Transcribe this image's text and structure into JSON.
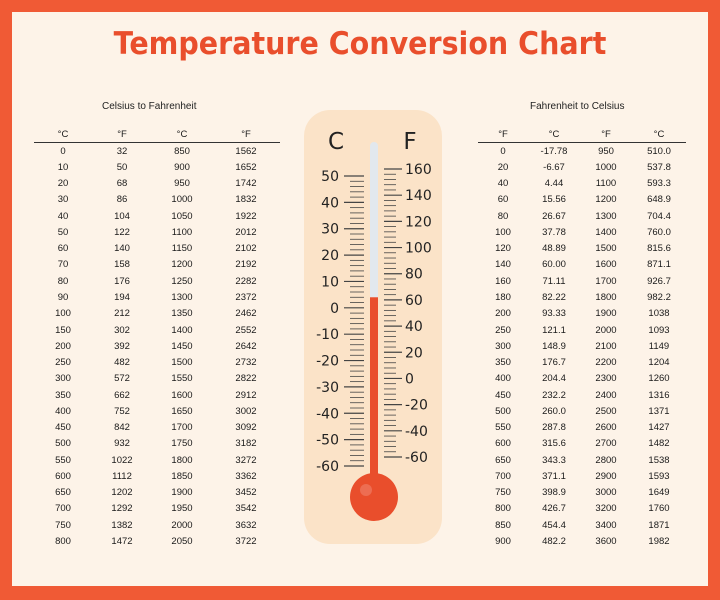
{
  "title": "Temperature Conversion Chart",
  "left_table": {
    "caption": "Celsius to Fahrenheit",
    "headers": [
      "°C",
      "°F",
      "°C",
      "°F"
    ],
    "rows": [
      [
        "0",
        "32",
        "850",
        "1562"
      ],
      [
        "10",
        "50",
        "900",
        "1652"
      ],
      [
        "20",
        "68",
        "950",
        "1742"
      ],
      [
        "30",
        "86",
        "1000",
        "1832"
      ],
      [
        "40",
        "104",
        "1050",
        "1922"
      ],
      [
        "50",
        "122",
        "1100",
        "2012"
      ],
      [
        "60",
        "140",
        "1150",
        "2102"
      ],
      [
        "70",
        "158",
        "1200",
        "2192"
      ],
      [
        "80",
        "176",
        "1250",
        "2282"
      ],
      [
        "90",
        "194",
        "1300",
        "2372"
      ],
      [
        "100",
        "212",
        "1350",
        "2462"
      ],
      [
        "150",
        "302",
        "1400",
        "2552"
      ],
      [
        "200",
        "392",
        "1450",
        "2642"
      ],
      [
        "250",
        "482",
        "1500",
        "2732"
      ],
      [
        "300",
        "572",
        "1550",
        "2822"
      ],
      [
        "350",
        "662",
        "1600",
        "2912"
      ],
      [
        "400",
        "752",
        "1650",
        "3002"
      ],
      [
        "450",
        "842",
        "1700",
        "3092"
      ],
      [
        "500",
        "932",
        "1750",
        "3182"
      ],
      [
        "550",
        "1022",
        "1800",
        "3272"
      ],
      [
        "600",
        "1112",
        "1850",
        "3362"
      ],
      [
        "650",
        "1202",
        "1900",
        "3452"
      ],
      [
        "700",
        "1292",
        "1950",
        "3542"
      ],
      [
        "750",
        "1382",
        "2000",
        "3632"
      ],
      [
        "800",
        "1472",
        "2050",
        "3722"
      ]
    ]
  },
  "right_table": {
    "caption": "Fahrenheit to Celsius",
    "headers": [
      "°F",
      "°C",
      "°F",
      "°C"
    ],
    "rows": [
      [
        "0",
        "-17.78",
        "950",
        "510.0"
      ],
      [
        "20",
        "-6.67",
        "1000",
        "537.8"
      ],
      [
        "40",
        "4.44",
        "1100",
        "593.3"
      ],
      [
        "60",
        "15.56",
        "1200",
        "648.9"
      ],
      [
        "80",
        "26.67",
        "1300",
        "704.4"
      ],
      [
        "100",
        "37.78",
        "1400",
        "760.0"
      ],
      [
        "120",
        "48.89",
        "1500",
        "815.6"
      ],
      [
        "140",
        "60.00",
        "1600",
        "871.1"
      ],
      [
        "160",
        "71.11",
        "1700",
        "926.7"
      ],
      [
        "180",
        "82.22",
        "1800",
        "982.2"
      ],
      [
        "200",
        "93.33",
        "1900",
        "1038"
      ],
      [
        "250",
        "121.1",
        "2000",
        "1093"
      ],
      [
        "300",
        "148.9",
        "2100",
        "1149"
      ],
      [
        "350",
        "176.7",
        "2200",
        "1204"
      ],
      [
        "400",
        "204.4",
        "2300",
        "1260"
      ],
      [
        "450",
        "232.2",
        "2400",
        "1316"
      ],
      [
        "500",
        "260.0",
        "2500",
        "1371"
      ],
      [
        "550",
        "287.8",
        "2600",
        "1427"
      ],
      [
        "600",
        "315.6",
        "2700",
        "1482"
      ],
      [
        "650",
        "343.3",
        "2800",
        "1538"
      ],
      [
        "700",
        "371.1",
        "2900",
        "1593"
      ],
      [
        "750",
        "398.9",
        "3000",
        "1649"
      ],
      [
        "800",
        "426.7",
        "3200",
        "1760"
      ],
      [
        "850",
        "454.4",
        "3400",
        "1871"
      ],
      [
        "900",
        "482.2",
        "3600",
        "1982"
      ]
    ]
  },
  "thermometer": {
    "celsius_unit": "C",
    "fahrenheit_unit": "F",
    "celsius_labels": [
      "50",
      "40",
      "30",
      "20",
      "10",
      "0",
      "-10",
      "-20",
      "-30",
      "-40",
      "-50",
      "-60"
    ],
    "fahrenheit_labels": [
      "160",
      "140",
      "120",
      "100",
      "80",
      "60",
      "40",
      "20",
      "0",
      "-20",
      "-40",
      "-60"
    ],
    "celsius_min": -60,
    "celsius_max": 50,
    "fahrenheit_min": -60,
    "fahrenheit_max": 160,
    "reading_celsius": 4,
    "colors": {
      "body": "#fbe3c8",
      "liquid": "#e94e2c",
      "tube": "#e2e8ee",
      "ticks": "#444444",
      "accent": "#f05a35"
    }
  }
}
